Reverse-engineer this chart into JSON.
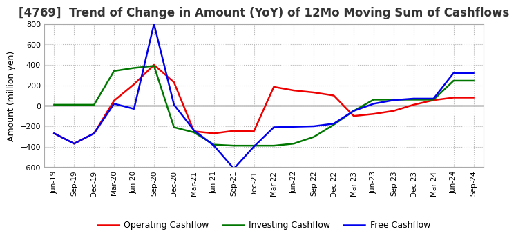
{
  "title": "[4769]  Trend of Change in Amount (YoY) of 12Mo Moving Sum of Cashflows",
  "ylabel": "Amount (million yen)",
  "xlabels": [
    "Jun-19",
    "Sep-19",
    "Dec-19",
    "Mar-20",
    "Jun-20",
    "Sep-20",
    "Dec-20",
    "Mar-21",
    "Jun-21",
    "Sep-21",
    "Dec-21",
    "Mar-22",
    "Jun-22",
    "Sep-22",
    "Dec-22",
    "Mar-23",
    "Jun-23",
    "Sep-23",
    "Dec-23",
    "Mar-24",
    "Jun-24",
    "Sep-24"
  ],
  "operating": [
    -270,
    -370,
    -270,
    50,
    210,
    400,
    230,
    -250,
    -270,
    -245,
    -250,
    185,
    150,
    130,
    100,
    -100,
    -80,
    -50,
    10,
    55,
    80,
    80
  ],
  "investing": [
    10,
    10,
    10,
    340,
    370,
    390,
    -210,
    -260,
    -380,
    -390,
    -390,
    -390,
    -370,
    -305,
    -185,
    -50,
    60,
    60,
    60,
    60,
    245,
    245
  ],
  "free": [
    -270,
    -370,
    -270,
    20,
    -30,
    800,
    10,
    -240,
    -390,
    -615,
    -400,
    -210,
    -205,
    -200,
    -175,
    -50,
    20,
    55,
    70,
    70,
    320,
    320
  ],
  "ylim": [
    -600,
    800
  ],
  "yticks": [
    -600,
    -400,
    -200,
    0,
    200,
    400,
    600,
    800
  ],
  "operating_color": "#ee0000",
  "investing_color": "#007700",
  "free_color": "#0000ee",
  "line_width": 1.8,
  "background_color": "#ffffff",
  "grid_color": "#bbbbbb",
  "title_fontsize": 12,
  "legend_fontsize": 9
}
